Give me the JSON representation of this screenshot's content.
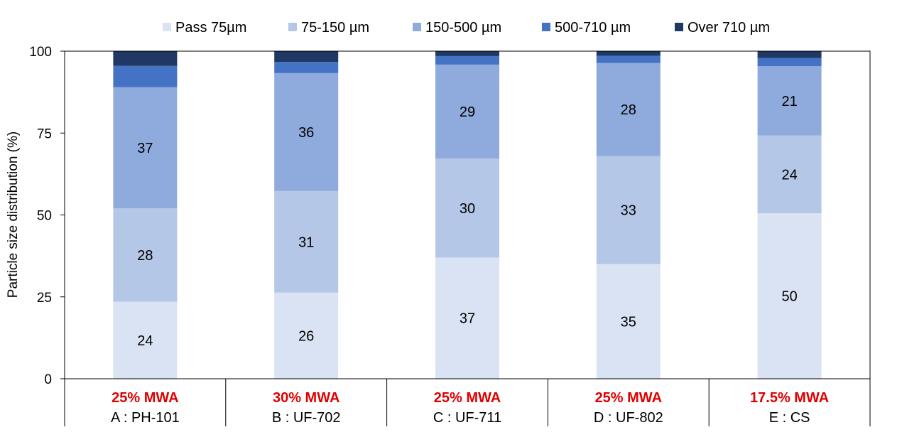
{
  "chart_data": {
    "type": "bar",
    "stacked": true,
    "categories": [
      {
        "highlight": "25% MWA",
        "label": "A : PH-101"
      },
      {
        "highlight": "30% MWA",
        "label": "B : UF-702"
      },
      {
        "highlight": "25% MWA",
        "label": "C : UF-711"
      },
      {
        "highlight": "25% MWA",
        "label": "D : UF-802"
      },
      {
        "highlight": "17.5% MWA",
        "label": "E : CS"
      }
    ],
    "series": [
      {
        "name": "Pass 75µm",
        "color": "#dae3f3",
        "values": [
          23.5,
          26.3,
          37.0,
          35.0,
          50.5
        ],
        "labels": [
          "24",
          "26",
          "37",
          "35",
          "50"
        ]
      },
      {
        "name": "75-150 µm",
        "color": "#b4c7e7",
        "values": [
          28.5,
          31.0,
          30.2,
          33.0,
          23.8
        ],
        "labels": [
          "28",
          "31",
          "30",
          "33",
          "24"
        ]
      },
      {
        "name": "150-500 µm",
        "color": "#8faadc",
        "values": [
          37.0,
          36.0,
          28.7,
          28.4,
          21.1
        ],
        "labels": [
          "37",
          "36",
          "29",
          "28",
          "21"
        ]
      },
      {
        "name": "500-710 µm",
        "color": "#4472c4",
        "values": [
          6.5,
          3.4,
          2.6,
          2.2,
          2.5
        ],
        "labels": [
          "",
          "",
          "",
          "",
          ""
        ]
      },
      {
        "name": "Over 710 µm",
        "color": "#203864",
        "values": [
          4.5,
          3.3,
          1.5,
          1.4,
          2.1
        ],
        "labels": [
          "",
          "",
          "",
          "",
          ""
        ]
      }
    ],
    "ylabel": "Particle size distribution  (%)",
    "xlabel": "",
    "ylim": [
      0,
      100
    ],
    "yticks": [
      0,
      25,
      50,
      75,
      100
    ],
    "highlight_color": "#e00000",
    "grid": false,
    "legend_position": "top"
  }
}
